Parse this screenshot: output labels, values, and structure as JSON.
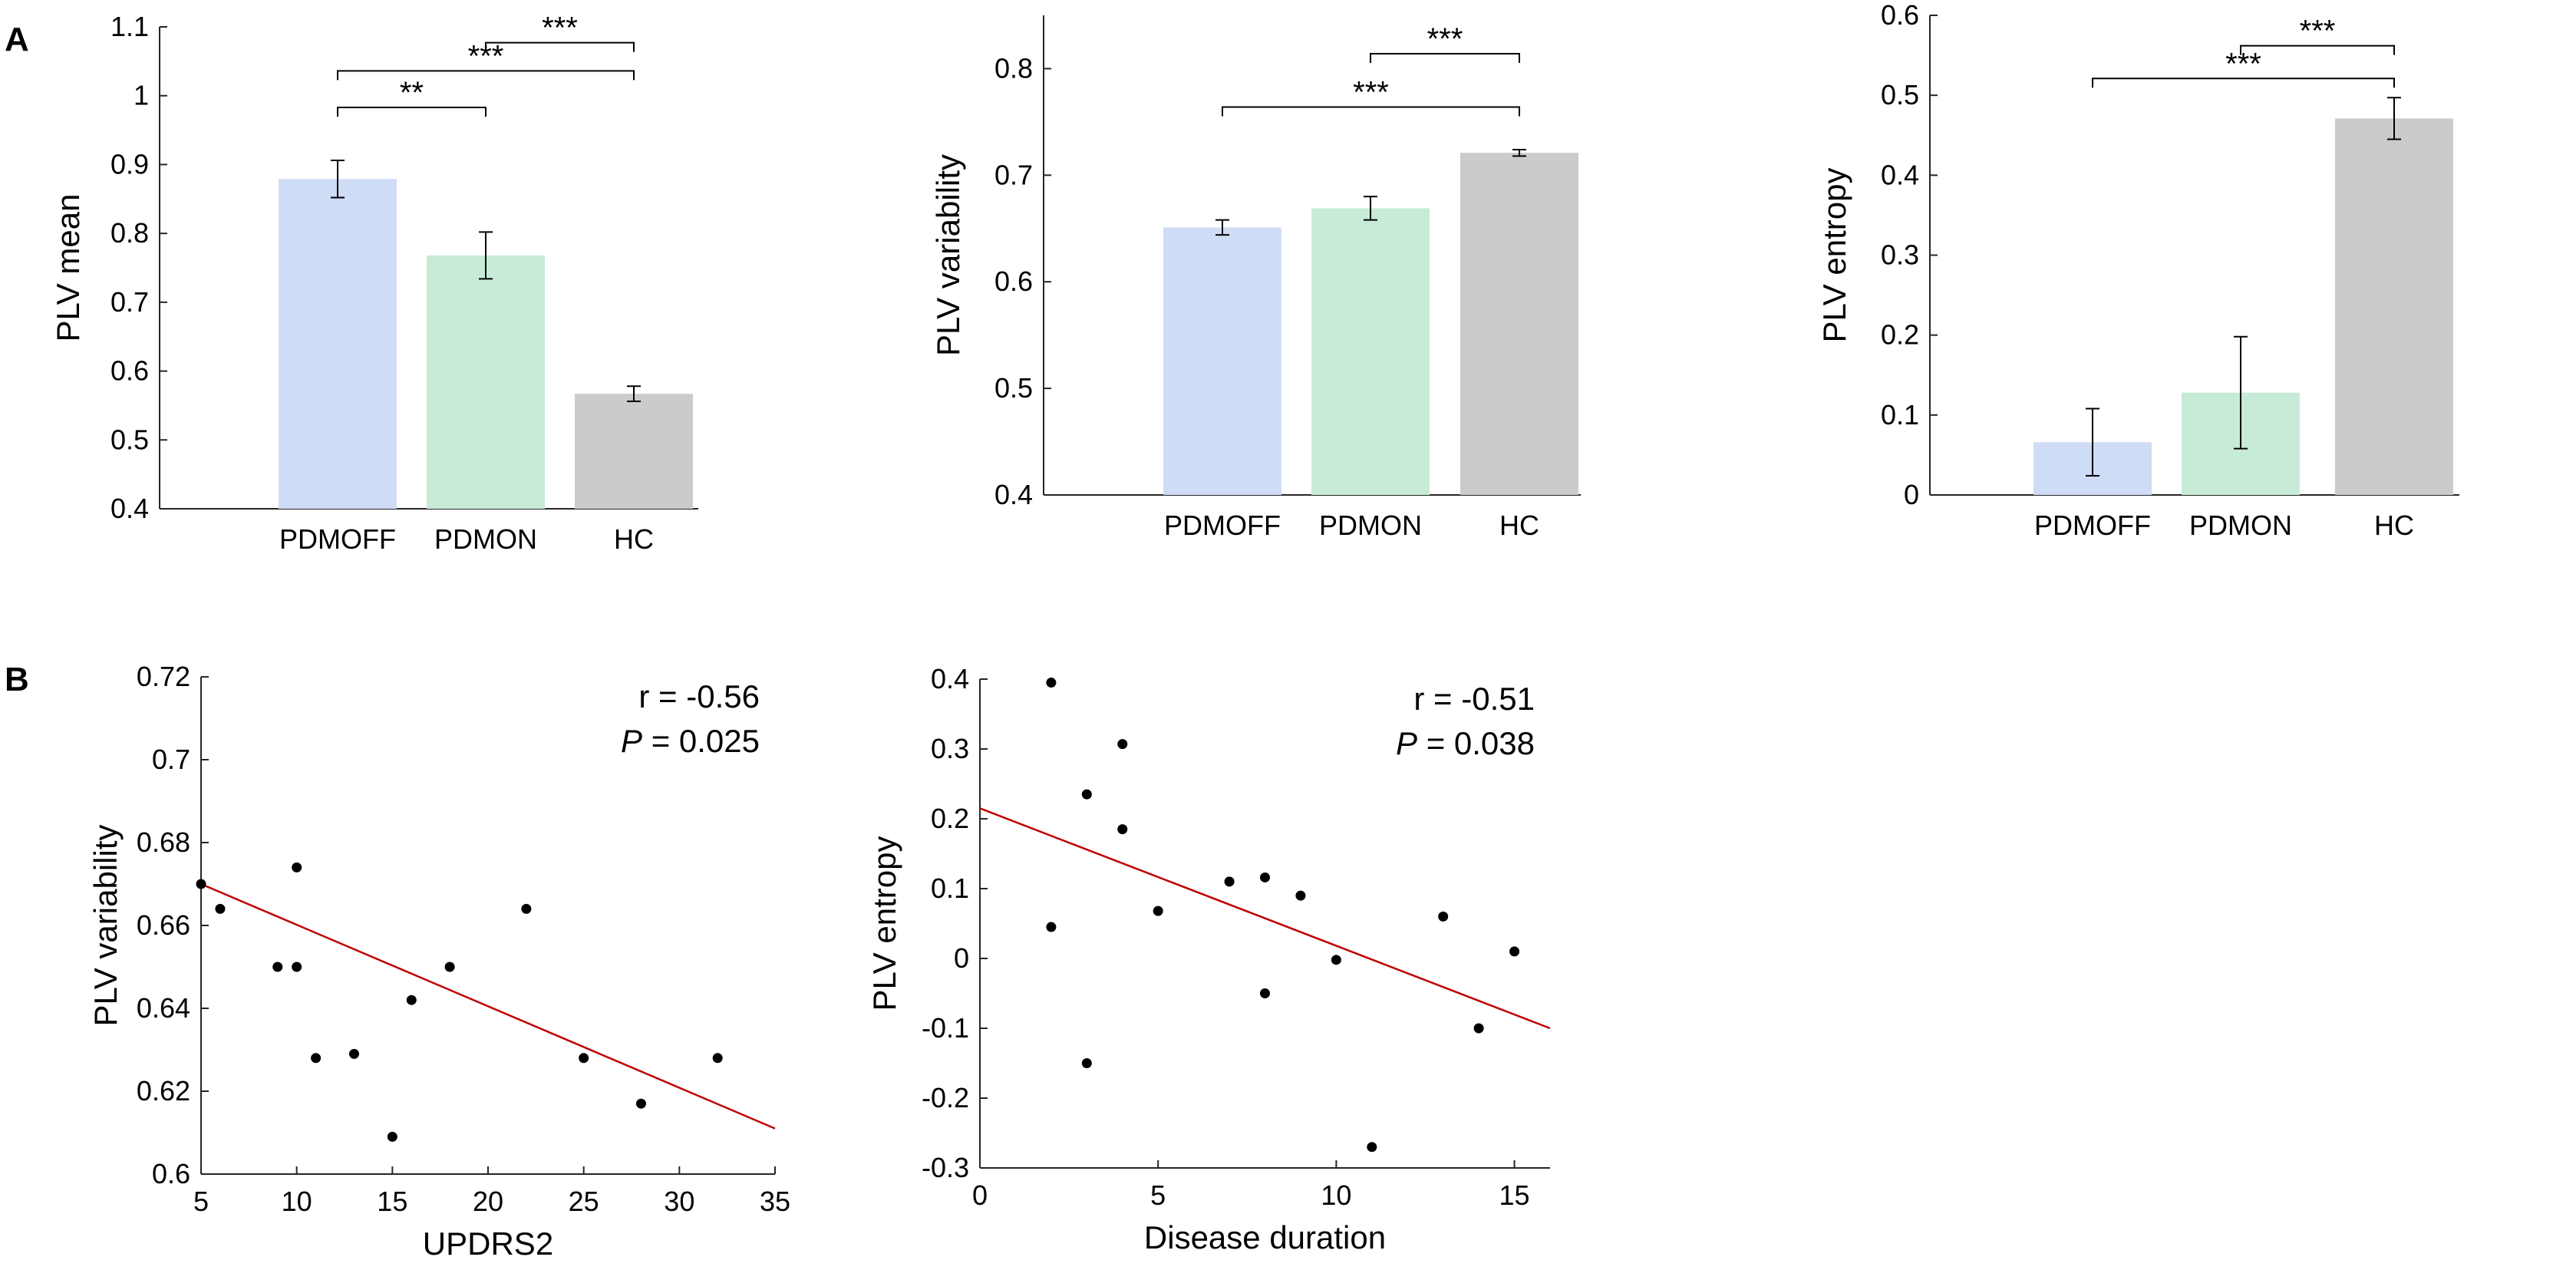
{
  "panel_labels": [
    "A",
    "B"
  ],
  "significance_labels": [
    "**",
    "***"
  ],
  "chart_data": [
    {
      "type": "bar",
      "panel": "A",
      "ylabel": "PLV mean",
      "categories": [
        "PDMOFF",
        "PDMON",
        "HC"
      ],
      "values": [
        0.879,
        0.768,
        0.567
      ],
      "errors": [
        0.027,
        0.034,
        0.011
      ],
      "colors": [
        "#cfdcf6",
        "#c7ebd7",
        "#cbcbcb"
      ],
      "ylim": [
        0.4,
        1.1
      ],
      "yticks": [
        0.4,
        0.5,
        0.6,
        0.7,
        0.8,
        0.9,
        1,
        1.1
      ],
      "ytick_labels": [
        "0.4",
        "0.5",
        "0.6",
        "0.7",
        "0.8",
        "0.9",
        "1",
        "1.1"
      ],
      "significance": [
        {
          "from": 0,
          "to": 1,
          "level": 0.983,
          "label": "**"
        },
        {
          "from": 0,
          "to": 2,
          "level": 1.036,
          "label": "***"
        },
        {
          "from": 1,
          "to": 2,
          "level": 1.077,
          "label": "***"
        }
      ]
    },
    {
      "type": "bar",
      "panel": "A",
      "ylabel": "PLV variability",
      "categories": [
        "PDMOFF",
        "PDMON",
        "HC"
      ],
      "values": [
        0.651,
        0.669,
        0.721
      ],
      "errors": [
        0.007,
        0.011,
        0.003
      ],
      "colors": [
        "#cfdcf6",
        "#c7ebd7",
        "#cbcbcb"
      ],
      "ylim": [
        0.4,
        0.85
      ],
      "yticks": [
        0.4,
        0.5,
        0.6,
        0.7,
        0.8
      ],
      "ytick_labels": [
        "0.4",
        "0.5",
        "0.6",
        "0.7",
        "0.8"
      ],
      "significance": [
        {
          "from": 0,
          "to": 2,
          "level": 0.764,
          "label": "***"
        },
        {
          "from": 1,
          "to": 2,
          "level": 0.814,
          "label": "***"
        }
      ]
    },
    {
      "type": "bar",
      "panel": "A",
      "ylabel": "PLV entropy",
      "categories": [
        "PDMOFF",
        "PDMON",
        "HC"
      ],
      "values": [
        0.066,
        0.128,
        0.471
      ],
      "errors": [
        0.042,
        0.07,
        0.026
      ],
      "colors": [
        "#cfdcf6",
        "#c7ebd7",
        "#cbcbcb"
      ],
      "ylim": [
        0,
        0.6
      ],
      "yticks": [
        0,
        0.1,
        0.2,
        0.3,
        0.4,
        0.5,
        0.6
      ],
      "ytick_labels": [
        "0",
        "0.1",
        "0.2",
        "0.3",
        "0.4",
        "0.5",
        "0.6"
      ],
      "significance": [
        {
          "from": 0,
          "to": 2,
          "level": 0.521,
          "label": "***"
        },
        {
          "from": 1,
          "to": 2,
          "level": 0.562,
          "label": "***"
        }
      ]
    },
    {
      "type": "scatter",
      "panel": "B",
      "xlabel": "UPDRS2",
      "ylabel": "PLV variability",
      "xlim": [
        5,
        35
      ],
      "ylim": [
        0.6,
        0.72
      ],
      "xticks": [
        5,
        10,
        15,
        20,
        25,
        30,
        35
      ],
      "xtick_labels": [
        "5",
        "10",
        "15",
        "20",
        "25",
        "30",
        "35"
      ],
      "yticks": [
        0.6,
        0.62,
        0.64,
        0.66,
        0.68,
        0.7,
        0.72
      ],
      "ytick_labels": [
        "0.6",
        "0.62",
        "0.64",
        "0.66",
        "0.68",
        "0.7",
        "0.72"
      ],
      "points": [
        {
          "x": 5,
          "y": 0.67
        },
        {
          "x": 6,
          "y": 0.664
        },
        {
          "x": 9,
          "y": 0.65
        },
        {
          "x": 10,
          "y": 0.674
        },
        {
          "x": 10,
          "y": 0.65
        },
        {
          "x": 11,
          "y": 0.628
        },
        {
          "x": 13,
          "y": 0.629
        },
        {
          "x": 15,
          "y": 0.609
        },
        {
          "x": 16,
          "y": 0.642
        },
        {
          "x": 18,
          "y": 0.65
        },
        {
          "x": 22,
          "y": 0.664
        },
        {
          "x": 25,
          "y": 0.628
        },
        {
          "x": 28,
          "y": 0.617
        },
        {
          "x": 32,
          "y": 0.628
        }
      ],
      "fit_line": {
        "x": [
          5,
          35
        ],
        "y": [
          0.67,
          0.611
        ]
      },
      "annotation_r": "r = -0.56",
      "annotation_p_symbol": "P",
      "annotation_p_value": " = 0.025"
    },
    {
      "type": "scatter",
      "panel": "B",
      "xlabel": "Disease duration",
      "ylabel": "PLV entropy",
      "xlim": [
        0,
        16
      ],
      "ylim": [
        -0.3,
        0.4
      ],
      "xticks": [
        0,
        5,
        10,
        15
      ],
      "xtick_labels": [
        "0",
        "5",
        "10",
        "15"
      ],
      "yticks": [
        -0.3,
        -0.2,
        -0.1,
        0,
        0.1,
        0.2,
        0.3,
        0.4
      ],
      "ytick_labels": [
        "-0.3",
        "-0.2",
        "-0.1",
        "0",
        "0.1",
        "0.2",
        "0.3",
        "0.4"
      ],
      "points": [
        {
          "x": 2,
          "y": 0.395
        },
        {
          "x": 2,
          "y": 0.045
        },
        {
          "x": 3,
          "y": 0.235
        },
        {
          "x": 3,
          "y": -0.15
        },
        {
          "x": 4,
          "y": 0.307
        },
        {
          "x": 4,
          "y": 0.185
        },
        {
          "x": 5,
          "y": 0.068
        },
        {
          "x": 7,
          "y": 0.11
        },
        {
          "x": 8,
          "y": 0.116
        },
        {
          "x": 8,
          "y": -0.05
        },
        {
          "x": 9,
          "y": 0.09
        },
        {
          "x": 10,
          "y": -0.002
        },
        {
          "x": 11,
          "y": -0.27
        },
        {
          "x": 13,
          "y": 0.06
        },
        {
          "x": 14,
          "y": -0.1
        },
        {
          "x": 15,
          "y": 0.01
        }
      ],
      "fit_line": {
        "x": [
          0,
          16
        ],
        "y": [
          0.215,
          -0.1
        ]
      },
      "annotation_r": "r = -0.51",
      "annotation_p_symbol": "P",
      "annotation_p_value": " = 0.038"
    }
  ]
}
